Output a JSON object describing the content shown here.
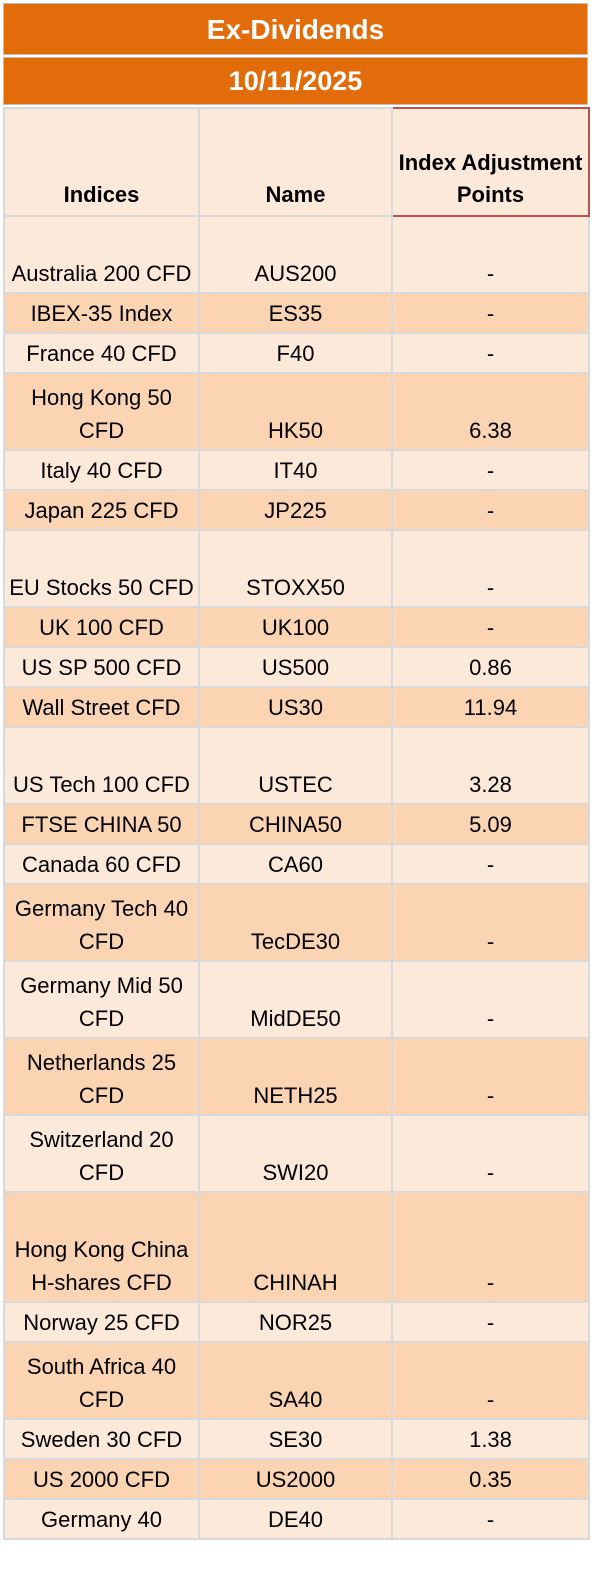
{
  "title": "Ex-Dividends",
  "date": "10/11/2025",
  "columns": [
    "Indices",
    "Name",
    "Index Adjustment Points"
  ],
  "rows": [
    {
      "index": "Australia 200 CFD",
      "name": "AUS200",
      "points": "-"
    },
    {
      "index": "IBEX-35 Index",
      "name": "ES35",
      "points": "-"
    },
    {
      "index": "France 40 CFD",
      "name": "F40",
      "points": "-"
    },
    {
      "index": "Hong Kong 50 CFD",
      "name": "HK50",
      "points": "6.38"
    },
    {
      "index": "Italy 40 CFD",
      "name": "IT40",
      "points": "-"
    },
    {
      "index": "Japan 225 CFD",
      "name": "JP225",
      "points": "-"
    },
    {
      "index": "EU Stocks 50 CFD",
      "name": "STOXX50",
      "points": "-"
    },
    {
      "index": "UK 100 CFD",
      "name": "UK100",
      "points": "-"
    },
    {
      "index": "US SP 500 CFD",
      "name": "US500",
      "points": "0.86"
    },
    {
      "index": "Wall Street CFD",
      "name": "US30",
      "points": "11.94"
    },
    {
      "index": "US Tech 100 CFD",
      "name": "USTEC",
      "points": "3.28"
    },
    {
      "index": "FTSE CHINA 50",
      "name": "CHINA50",
      "points": "5.09"
    },
    {
      "index": "Canada 60 CFD",
      "name": "CA60",
      "points": "-"
    },
    {
      "index": "Germany Tech 40 CFD",
      "name": "TecDE30",
      "points": "-"
    },
    {
      "index": "Germany Mid 50 CFD",
      "name": "MidDE50",
      "points": "-"
    },
    {
      "index": "Netherlands 25 CFD",
      "name": "NETH25",
      "points": "-"
    },
    {
      "index": "Switzerland 20 CFD",
      "name": "SWI20",
      "points": "-"
    },
    {
      "index": "Hong Kong China H-shares CFD",
      "name": "CHINAH",
      "points": "-"
    },
    {
      "index": "Norway 25 CFD",
      "name": "NOR25",
      "points": "-"
    },
    {
      "index": "South Africa 40 CFD",
      "name": "SA40",
      "points": "-"
    },
    {
      "index": "Sweden 30 CFD",
      "name": "SE30",
      "points": "1.38"
    },
    {
      "index": "US 2000 CFD",
      "name": "US2000",
      "points": "0.35"
    },
    {
      "index": "Germany 40",
      "name": "DE40",
      "points": "-"
    }
  ],
  "colors": {
    "banner": "#E36C0A",
    "row_light": "#FDE9D9",
    "row_dark": "#FBD4B4",
    "header_accent_border": "#C0504D"
  }
}
